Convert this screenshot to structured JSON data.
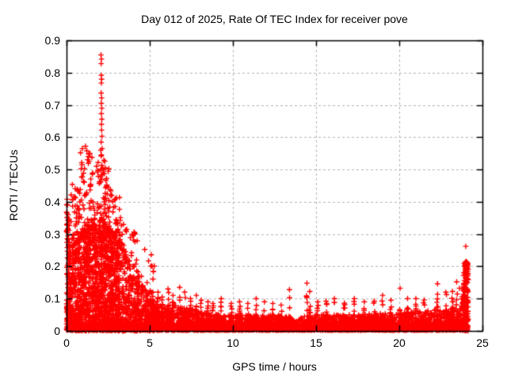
{
  "chart_data": {
    "type": "scatter",
    "title": "Day 012 of 2025, Rate Of TEC Index for receiver pove",
    "xlabel": "GPS time / hours",
    "ylabel": "ROTI / TECUs",
    "xlim": [
      0,
      25
    ],
    "ylim": [
      0,
      0.9
    ],
    "xtick_values": [
      0,
      5,
      10,
      15,
      20,
      25
    ],
    "ytick_values": [
      0,
      0.1,
      0.2,
      0.3,
      0.4,
      0.5,
      0.6,
      0.7,
      0.8,
      0.9
    ],
    "grid": true,
    "legend": "none",
    "marker": "plus",
    "marker_color": "#ff0000",
    "grid_color": "#b3b3b3",
    "border_color": "#000000",
    "text_color": "#000000",
    "background_color": "#ffffff",
    "data_time_span_hours": 24,
    "peak_value": 0.855,
    "peak_time_hour": 2.1,
    "seed": 1012,
    "envelope": [
      [
        0,
        0.3
      ],
      [
        0.25,
        0.26
      ],
      [
        0.5,
        0.27
      ],
      [
        0.8,
        0.29
      ],
      [
        1.2,
        0.31
      ],
      [
        1.6,
        0.32
      ],
      [
        2.0,
        0.34
      ],
      [
        2.4,
        0.32
      ],
      [
        2.8,
        0.3
      ],
      [
        3.2,
        0.26
      ],
      [
        3.6,
        0.22
      ],
      [
        4.0,
        0.18
      ],
      [
        4.4,
        0.15
      ],
      [
        4.8,
        0.12
      ],
      [
        5.2,
        0.1
      ],
      [
        5.6,
        0.085
      ],
      [
        6.0,
        0.08
      ],
      [
        6.5,
        0.08
      ],
      [
        7.0,
        0.075
      ],
      [
        7.5,
        0.07
      ],
      [
        8.0,
        0.06
      ],
      [
        8.5,
        0.055
      ],
      [
        9.0,
        0.052
      ],
      [
        10.0,
        0.05
      ],
      [
        11.0,
        0.05
      ],
      [
        12.0,
        0.05
      ],
      [
        13.0,
        0.048
      ],
      [
        13.6,
        0.04
      ],
      [
        13.9,
        0.032
      ],
      [
        14.2,
        0.045
      ],
      [
        14.6,
        0.05
      ],
      [
        15.0,
        0.05
      ],
      [
        16.0,
        0.05
      ],
      [
        17.0,
        0.05
      ],
      [
        18.0,
        0.052
      ],
      [
        19.0,
        0.055
      ],
      [
        20.0,
        0.055
      ],
      [
        21.0,
        0.06
      ],
      [
        22.0,
        0.065
      ],
      [
        23.0,
        0.07
      ],
      [
        23.6,
        0.08
      ],
      [
        23.85,
        0.12
      ],
      [
        24.0,
        0.18
      ],
      [
        24.15,
        0.21
      ]
    ],
    "baseline": {
      "t0": 0,
      "t1": 24.12,
      "n": 5200,
      "exp": 3.0
    },
    "fill_layers": [
      {
        "t0": 0,
        "t1": 3.2,
        "n": 950,
        "exp": 1.25
      },
      {
        "t0": 3.2,
        "t1": 5.5,
        "n": 260,
        "exp": 1.6
      },
      {
        "t0": 23.8,
        "t1": 24.15,
        "n": 120,
        "exp": 1.4
      }
    ],
    "tail_layers": [
      {
        "t0": 0.0,
        "t1": 0.15,
        "n": 22,
        "vmax": 0.4,
        "exp": 1.5
      },
      {
        "t0": 0.15,
        "t1": 0.8,
        "n": 55,
        "vmax": 0.47,
        "exp": 2.4
      },
      {
        "t0": 0.8,
        "t1": 1.5,
        "n": 65,
        "vmax": 0.57,
        "exp": 2.4
      },
      {
        "t0": 1.5,
        "t1": 2.6,
        "n": 85,
        "vmax": 0.55,
        "exp": 2.4
      },
      {
        "t0": 2.6,
        "t1": 3.3,
        "n": 48,
        "vmax": 0.44,
        "exp": 2.2
      },
      {
        "t0": 3.3,
        "t1": 4.3,
        "n": 42,
        "vmax": 0.32,
        "exp": 2.0
      },
      {
        "t0": 4.3,
        "t1": 5.3,
        "n": 24,
        "vmax": 0.24,
        "exp": 2.0
      },
      {
        "t0": 23.85,
        "t1": 24.12,
        "n": 60,
        "vmax": 0.215,
        "exp": 1.6
      }
    ],
    "spikes": [
      [
        5.5,
        0.12
      ],
      [
        5.75,
        0.105
      ],
      [
        6.1,
        0.13
      ],
      [
        6.4,
        0.11
      ],
      [
        6.8,
        0.135
      ],
      [
        7.1,
        0.12
      ],
      [
        7.45,
        0.1
      ],
      [
        7.8,
        0.11
      ],
      [
        8.1,
        0.095
      ],
      [
        8.5,
        0.09
      ],
      [
        8.8,
        0.085
      ],
      [
        9.3,
        0.1
      ],
      [
        9.9,
        0.085
      ],
      [
        10.4,
        0.09
      ],
      [
        10.9,
        0.085
      ],
      [
        11.4,
        0.1
      ],
      [
        11.9,
        0.09
      ],
      [
        12.4,
        0.085
      ],
      [
        12.9,
        0.08
      ],
      [
        13.4,
        0.128
      ],
      [
        14.45,
        0.148
      ],
      [
        14.62,
        0.122
      ],
      [
        15.1,
        0.09
      ],
      [
        15.6,
        0.092
      ],
      [
        16.1,
        0.1
      ],
      [
        16.7,
        0.086
      ],
      [
        17.3,
        0.1
      ],
      [
        17.9,
        0.09
      ],
      [
        18.5,
        0.092
      ],
      [
        19.0,
        0.11
      ],
      [
        19.5,
        0.095
      ],
      [
        20.05,
        0.132
      ],
      [
        20.5,
        0.1
      ],
      [
        21.0,
        0.1
      ],
      [
        21.5,
        0.096
      ],
      [
        22.3,
        0.146
      ],
      [
        22.8,
        0.12
      ],
      [
        23.2,
        0.122
      ],
      [
        23.45,
        0.152
      ],
      [
        23.62,
        0.132
      ]
    ],
    "outliers": [
      [
        2.07,
        0.855
      ],
      [
        2.1,
        0.842
      ],
      [
        2.08,
        0.828
      ],
      [
        2.09,
        0.792
      ],
      [
        2.11,
        0.78
      ],
      [
        2.09,
        0.768
      ],
      [
        2.08,
        0.737
      ],
      [
        2.11,
        0.722
      ],
      [
        2.09,
        0.705
      ],
      [
        2.12,
        0.69
      ],
      [
        2.09,
        0.673
      ],
      [
        2.12,
        0.656
      ],
      [
        2.1,
        0.64
      ],
      [
        2.11,
        0.622
      ],
      [
        2.13,
        0.603
      ],
      [
        2.08,
        0.585
      ],
      [
        2.14,
        0.565
      ],
      [
        2.1,
        0.545
      ],
      [
        2.05,
        0.56
      ],
      [
        2.06,
        0.5
      ],
      [
        2.12,
        0.47
      ],
      [
        2.3,
        0.525
      ],
      [
        2.33,
        0.505
      ],
      [
        2.28,
        0.487
      ],
      [
        2.36,
        0.466
      ],
      [
        2.42,
        0.452
      ],
      [
        1.14,
        0.572
      ],
      [
        0.95,
        0.565
      ],
      [
        1.22,
        0.558
      ],
      [
        1.31,
        0.54
      ],
      [
        1.36,
        0.525
      ],
      [
        0.88,
        0.502
      ],
      [
        0.95,
        0.478
      ],
      [
        1.02,
        0.463
      ],
      [
        1.8,
        0.51
      ],
      [
        1.86,
        0.492
      ],
      [
        0.03,
        0.408
      ],
      [
        0.06,
        0.39
      ],
      [
        2.62,
        0.438
      ],
      [
        2.72,
        0.421
      ],
      [
        3.42,
        0.33
      ],
      [
        3.55,
        0.312
      ],
      [
        3.95,
        0.3
      ],
      [
        4.7,
        0.252
      ],
      [
        5.15,
        0.2
      ],
      [
        24.0,
        0.262
      ],
      [
        24.03,
        0.212
      ],
      [
        23.97,
        0.206
      ],
      [
        14.45,
        0.148
      ],
      [
        23.45,
        0.152
      ],
      [
        22.3,
        0.146
      ],
      [
        20.05,
        0.132
      ],
      [
        13.4,
        0.128
      ]
    ]
  }
}
